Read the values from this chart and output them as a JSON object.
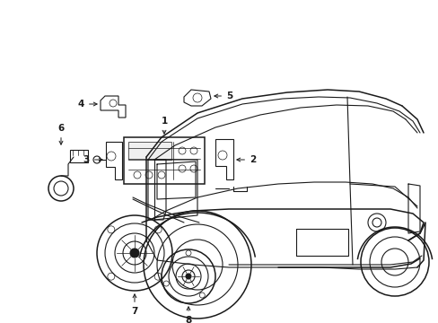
{
  "background_color": "#ffffff",
  "line_color": "#1a1a1a",
  "figsize": [
    4.89,
    3.6
  ],
  "dpi": 100,
  "label_fontsize": 7.5
}
